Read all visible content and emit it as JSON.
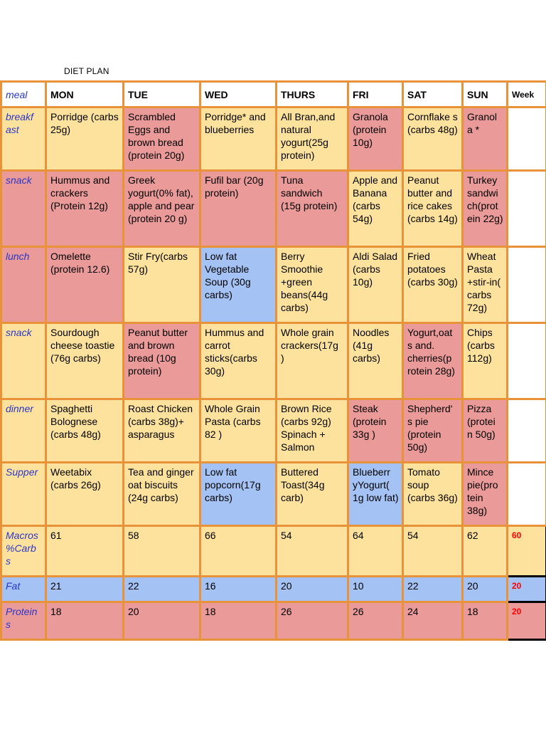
{
  "title": "DIET PLAN",
  "columns": [
    "meal",
    "MON",
    "TUE",
    "WED",
    "THURS",
    "FRI",
    "SAT",
    "SUN",
    "Week"
  ],
  "meal_rows": [
    {
      "label": "breakf ast",
      "cells": [
        "Porridge (carbs 25g)",
        "Scrambled Eggs  and brown bread (protein 20g)",
        "Porridge* and blueberries",
        "All Bran,and natural yogurt(25g protein)",
        "Granola (protein 10g)",
        "Cornflake s (carbs 48g)",
        "Granol a *"
      ]
    },
    {
      "label": "snack",
      "cells": [
        " Hummus and crackers (Protein 12g)",
        "Greek yogurt(0% fat), apple and pear (protein 20 g)",
        "Fufil bar (20g protein)",
        "Tuna sandwich (15g protein)",
        "Apple and Banana (carbs 54g)",
        "Peanut butter and rice cakes (carbs 14g)",
        "Turkey sandwi ch(prot ein 22g)"
      ]
    },
    {
      "label": "lunch",
      "cells": [
        "Omelette (protein 12.6)",
        "Stir Fry(carbs 57g)",
        "Low fat Vegetable Soup (30g carbs)",
        "Berry Smoothie +green beans(44g carbs)",
        "Aldi Salad (carbs 10g)",
        "Fried potatoes (carbs 30g)",
        "Wheat Pasta +stir-in( carbs 72g)"
      ]
    },
    {
      "label": "snack",
      "cells": [
        "Sourdough cheese toastie (76g carbs)",
        "Peanut butter and brown bread (10g protein)",
        "Hummus and carrot sticks(carbs 30g)",
        "Whole grain crackers(17g )",
        "Noodles (41g carbs)",
        "Yogurt,oat s and. cherries(p rotein 28g)",
        "Chips (carbs 112g)"
      ]
    },
    {
      "label": "dinner",
      "cells": [
        "Spaghetti Bolognese (carbs 48g)",
        "Roast Chicken (carbs 38g)+ asparagus",
        "Whole Grain Pasta (carbs 82 )",
        "Brown Rice (carbs 92g) Spinach + Salmon",
        "Steak (protein 33g )",
        "Shepherd' s pie (protein 50g)",
        "Pizza (protei n 50g)"
      ]
    },
    {
      "label": "Supper",
      "cells": [
        "Weetabix (carbs 26g)",
        "Tea and ginger oat biscuits (24g carbs)",
        "Low fat popcorn(17g carbs)",
        "Buttered Toast(34g carb)",
        "Blueberr yYogurt( 1g low fat)",
        "Tomato soup (carbs 36g)",
        "Mince pie(pro tein 38g)"
      ]
    }
  ],
  "macro_rows": [
    {
      "label": "Macros %Carb s",
      "values": [
        "61",
        "58",
        "66",
        "54",
        "64",
        "54",
        "62"
      ],
      "week": "60"
    },
    {
      "label": "Fat",
      "values": [
        "21",
        "22",
        "16",
        "20",
        "10",
        "22",
        "20"
      ],
      "week": "20"
    },
    {
      "label": "Protein s",
      "values": [
        "18",
        "20",
        "18",
        "26",
        "26",
        "24",
        "18"
      ],
      "week": "20"
    }
  ],
  "colors": {
    "border": "#e8923a",
    "label_text": "#2a37c8",
    "yellow_cell": "#fde29d",
    "red_cell": "#ea9a98",
    "blue_cell": "#a4c2f4",
    "week_target_text": "#ff0000"
  }
}
